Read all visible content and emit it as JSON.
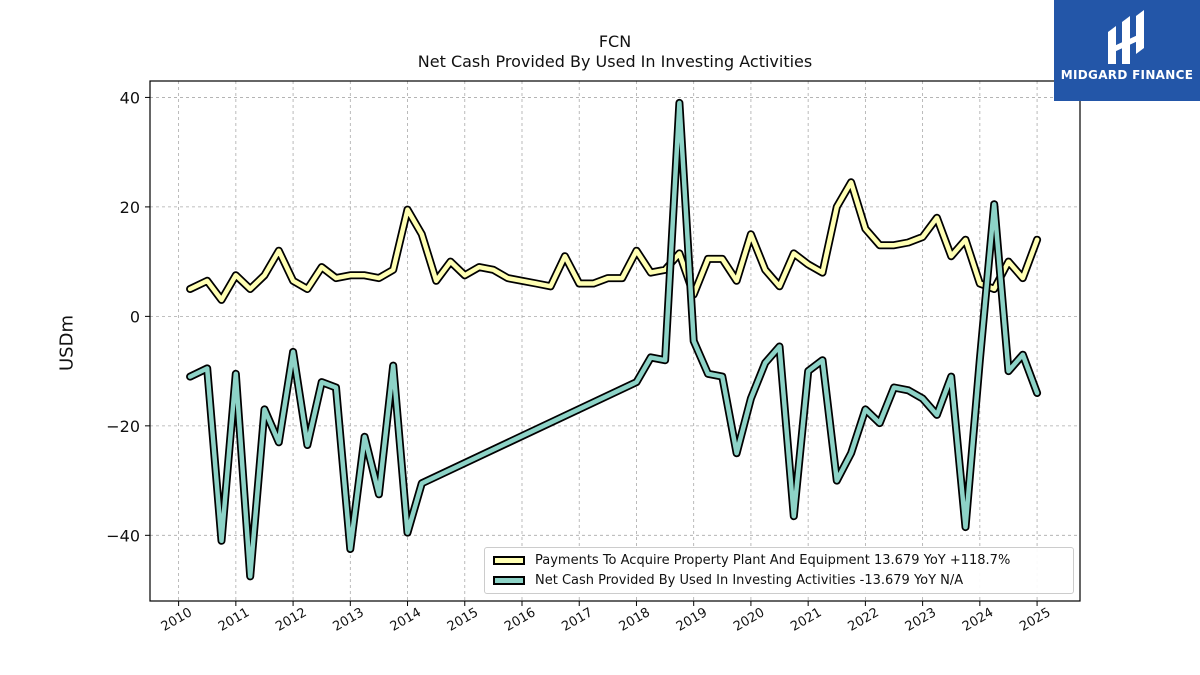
{
  "chart_data": {
    "type": "line",
    "title": "FCN",
    "subtitle": "Net Cash Provided By Used In Investing Activities",
    "ylabel": "USDm",
    "xlim": [
      2009.5,
      2025.75
    ],
    "ylim": [
      -52,
      43
    ],
    "yticks": [
      -40,
      -20,
      0,
      20,
      40
    ],
    "xticks": [
      "2010",
      "2011",
      "2012",
      "2013",
      "2014",
      "2015",
      "2016",
      "2017",
      "2018",
      "2019",
      "2020",
      "2021",
      "2022",
      "2023",
      "2024",
      "2025"
    ],
    "grid": true,
    "legend_position": "bottom-right",
    "series": [
      {
        "name": "Payments To Acquire Property Plant And Equipment  13.679 YoY +118.7%",
        "color": "#ffffb3",
        "x": [
          2010.2,
          2010.5,
          2010.75,
          2011.0,
          2011.25,
          2011.5,
          2011.75,
          2012.0,
          2012.25,
          2012.5,
          2012.75,
          2013.0,
          2013.25,
          2013.5,
          2013.75,
          2014.0,
          2014.25,
          2014.5,
          2014.75,
          2015.0,
          2015.25,
          2015.5,
          2015.75,
          2016.0,
          2016.25,
          2016.5,
          2016.75,
          2017.0,
          2017.25,
          2017.5,
          2017.75,
          2018.0,
          2018.25,
          2018.5,
          2018.75,
          2019.0,
          2019.25,
          2019.5,
          2019.75,
          2020.0,
          2020.25,
          2020.5,
          2020.75,
          2021.0,
          2021.25,
          2021.5,
          2021.75,
          2022.0,
          2022.25,
          2022.5,
          2022.75,
          2023.0,
          2023.25,
          2023.5,
          2023.75,
          2024.0,
          2024.25,
          2024.5,
          2024.75,
          2025.0
        ],
        "values": [
          5.0,
          6.5,
          3.0,
          7.5,
          5.0,
          7.5,
          12.0,
          6.5,
          5.0,
          9.0,
          7.0,
          7.5,
          7.5,
          7.0,
          8.5,
          19.5,
          15.0,
          6.5,
          10.0,
          7.5,
          9.0,
          8.5,
          7.0,
          6.5,
          6.0,
          5.5,
          11.0,
          6.0,
          6.0,
          7.0,
          7.0,
          12.0,
          8.0,
          8.5,
          11.5,
          4.0,
          10.5,
          10.5,
          6.5,
          15.0,
          8.5,
          5.5,
          11.5,
          9.5,
          8.0,
          20.0,
          24.5,
          16.0,
          13.0,
          13.0,
          13.5,
          14.5,
          18.0,
          11.0,
          14.0,
          6.0,
          5.0,
          10.0,
          7.0,
          14.0
        ]
      },
      {
        "name": "Net Cash Provided By Used In Investing Activities  -13.679 YoY N/A",
        "color": "#8dd3c7",
        "x": [
          2010.2,
          2010.5,
          2010.75,
          2011.0,
          2011.25,
          2011.5,
          2011.75,
          2012.0,
          2012.25,
          2012.5,
          2012.75,
          2013.0,
          2013.25,
          2013.5,
          2013.75,
          2014.0,
          2014.25,
          2018.0,
          2018.25,
          2018.5,
          2018.75,
          2019.0,
          2019.25,
          2019.5,
          2019.75,
          2020.0,
          2020.25,
          2020.5,
          2020.75,
          2021.0,
          2021.25,
          2021.5,
          2021.75,
          2022.0,
          2022.25,
          2022.5,
          2022.75,
          2023.0,
          2023.25,
          2023.5,
          2023.75,
          2024.0,
          2024.25,
          2024.5,
          2024.75,
          2025.0
        ],
        "values": [
          -11.0,
          -9.5,
          -41.0,
          -10.5,
          -47.5,
          -17.0,
          -23.0,
          -6.5,
          -23.5,
          -12.0,
          -13.0,
          -42.5,
          -22.0,
          -32.5,
          -9.0,
          -39.5,
          -30.5,
          -12.0,
          -7.5,
          -8.0,
          39.0,
          -4.5,
          -10.5,
          -11.0,
          -25.0,
          -15.0,
          -8.5,
          -5.5,
          -36.5,
          -10.0,
          -8.0,
          -30.0,
          -25.0,
          -17.0,
          -19.5,
          -13.0,
          -13.5,
          -15.0,
          -18.0,
          -11.0,
          -38.5,
          -8.0,
          20.5,
          -10.0,
          -7.0,
          -14.0
        ]
      }
    ]
  },
  "logo": {
    "text": "MIDGARD FINANCE"
  }
}
